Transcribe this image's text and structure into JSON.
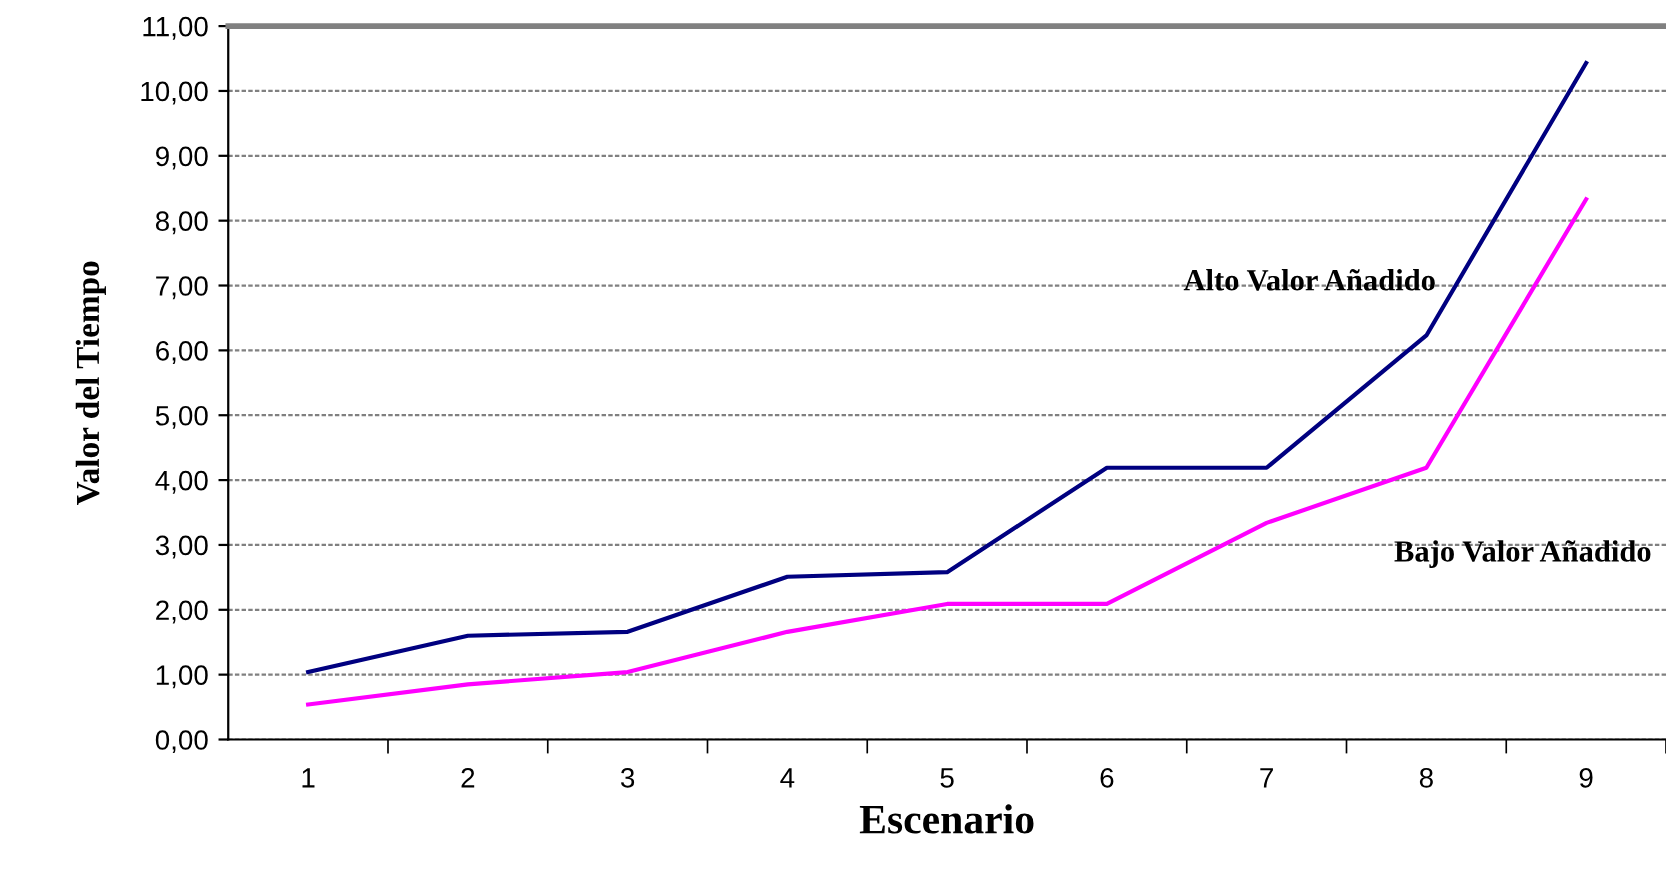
{
  "chart_data": {
    "type": "line",
    "xlabel": "Escenario",
    "ylabel": "Valor del Tiempo",
    "categories": [
      "1",
      "2",
      "3",
      "4",
      "5",
      "6",
      "7",
      "8",
      "9"
    ],
    "series": [
      {
        "name": "Alto Valor Añadido",
        "color": "#000080",
        "values": [
          1.04,
          1.6,
          1.66,
          2.51,
          2.58,
          4.19,
          4.19,
          6.23,
          10.43
        ]
      },
      {
        "name": "Bajo Valor Añadido",
        "color": "#ff00ff",
        "values": [
          0.54,
          0.85,
          1.04,
          1.66,
          2.09,
          2.09,
          3.34,
          4.19,
          8.33
        ]
      }
    ],
    "ylim": [
      0,
      11
    ],
    "yticks": [
      {
        "value": 0,
        "label": "0,00"
      },
      {
        "value": 1,
        "label": "1,00"
      },
      {
        "value": 2,
        "label": "2,00"
      },
      {
        "value": 3,
        "label": "3,00"
      },
      {
        "value": 4,
        "label": "4,00"
      },
      {
        "value": 5,
        "label": "5,00"
      },
      {
        "value": 6,
        "label": "6,00"
      },
      {
        "value": 7,
        "label": "7,00"
      },
      {
        "value": 8,
        "label": "8,00"
      },
      {
        "value": 9,
        "label": "9,00"
      },
      {
        "value": 10,
        "label": "10,00"
      },
      {
        "value": 11,
        "label": "11,00"
      }
    ],
    "grid": "y",
    "legend": false,
    "marker": "none",
    "line_style": "solid"
  }
}
